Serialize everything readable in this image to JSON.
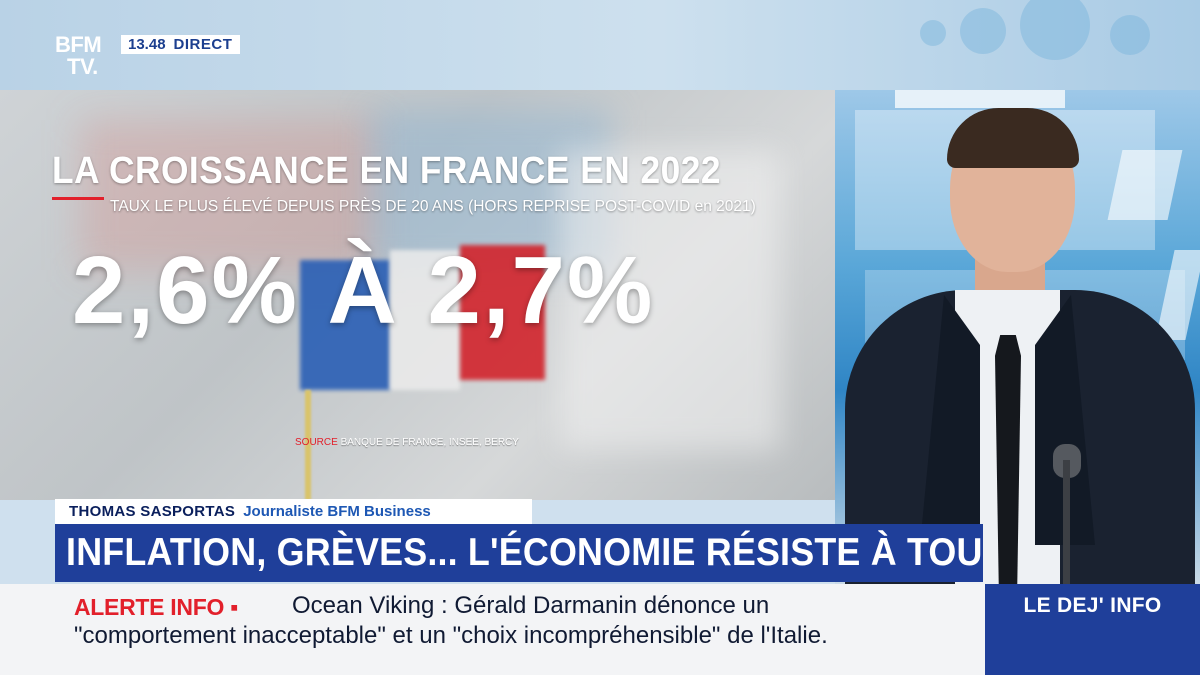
{
  "channel": {
    "logo_line1": "BFM",
    "logo_line2": "TV.",
    "time": "13.48",
    "live_label": "DIRECT"
  },
  "infographic": {
    "title": "LA CROISSANCE EN FRANCE EN 2022",
    "subtitle": "TAUX LE PLUS ÉLEVÉ DEPUIS PRÈS DE 20 ANS (HORS REPRISE POST-COVID en 2021)",
    "figure": "2,6% À 2,7%",
    "source_label": "SOURCE",
    "source_value": "BANQUE DE FRANCE, INSEE, BERCY"
  },
  "lower_third": {
    "name": "THOMAS SASPORTAS",
    "role": "Journaliste BFM Business",
    "headline": "INFLATION, GRÈVES... L'ÉCONOMIE RÉSISTE À TOUT"
  },
  "ticker": {
    "alert_label": "ALERTE INFO ▪",
    "line1": "Ocean Viking : Gérald Darmanin dénonce un",
    "line2": "\"comportement inacceptable\" et un \"choix incompréhensible\" de l'Italie."
  },
  "show": {
    "label": "LE DEJ' INFO"
  },
  "colors": {
    "brand_blue": "#1f3f9a",
    "alert_red": "#e2202b",
    "text_dark": "#101a33"
  }
}
